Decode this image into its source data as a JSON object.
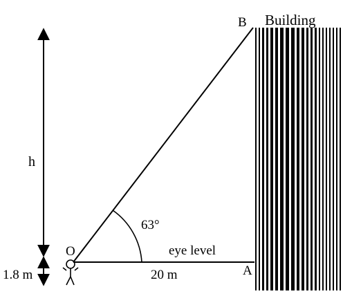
{
  "labels": {
    "building": "Building",
    "point_b": "B",
    "point_o": "O",
    "point_a": "A",
    "height": "h",
    "angle": "63°",
    "eye_level": "eye level",
    "distance": "20 m",
    "observer_height": "1.8 m"
  },
  "values": {
    "angle_deg": 63,
    "distance_m": 20,
    "observer_height_m": 1.8
  },
  "colors": {
    "ink": "#000000",
    "background": "#ffffff"
  }
}
